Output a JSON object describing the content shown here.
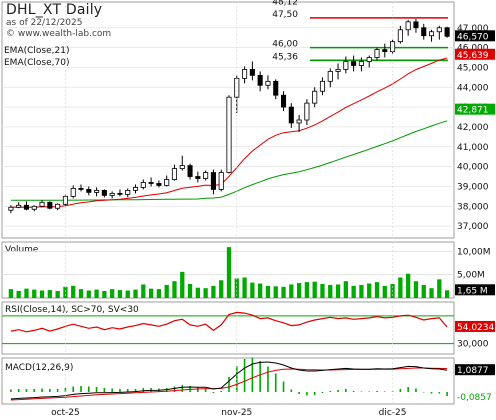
{
  "header": {
    "title": "DHL_XT Daily",
    "date": "as of 22/12/2025",
    "site": "© www.wealth-lab.com",
    "ema21_label": "EMA(Close,21)",
    "ema70_label": "EMA(Close,70)"
  },
  "price_axis": {
    "ticks": [
      "47,000",
      "46,000",
      "45,000",
      "44,000",
      "43,000",
      "42,000",
      "41,000",
      "40,000",
      "39,000",
      "38,000",
      "37,000"
    ],
    "last_close": "46,570",
    "ema21_value": "45,639",
    "ema70_value": "42,871",
    "levels": [
      {
        "label": "48,12",
        "value": 48.12,
        "color": "#000000"
      },
      {
        "label": "47,50",
        "value": 47.5,
        "color": "#dd0000"
      },
      {
        "label": "46,00",
        "value": 46.0,
        "color": "#009900"
      },
      {
        "label": "45,36",
        "value": 45.36,
        "color": "#009900"
      }
    ]
  },
  "volume": {
    "label": "Volume",
    "ticks": [
      "10,00M",
      "5,00M"
    ],
    "last": "1,65 M"
  },
  "rsi": {
    "label": "RSI(Close,14), SC>70, SV<30",
    "ticks": [
      "70,000",
      "30,000"
    ],
    "last": "54,0234"
  },
  "macd": {
    "label": "MACD(12,26,9)",
    "macd_last": "1,0877",
    "hist_last": "-0,0857"
  },
  "x_axis": {
    "labels": [
      "oct-25",
      "nov-25",
      "dic-25"
    ]
  },
  "colors": {
    "up": "#000000",
    "down": "#000000",
    "ema21": "#dd0000",
    "ema70": "#009900",
    "volume": "#00aa00",
    "rsi": "#dd0000",
    "macd": "#000000",
    "macd_signal": "#dd0000",
    "hist": "#00aa00"
  },
  "chart_data": {
    "type": "candlestick",
    "candles": [
      [
        37.8,
        38.05,
        37.65,
        37.95
      ],
      [
        37.95,
        38.2,
        37.9,
        38.05
      ],
      [
        38.05,
        38.25,
        37.8,
        37.85
      ],
      [
        37.85,
        38.05,
        37.75,
        38.0
      ],
      [
        38.0,
        38.3,
        37.95,
        38.2
      ],
      [
        38.2,
        38.25,
        37.85,
        37.9
      ],
      [
        37.9,
        38.15,
        37.8,
        38.1
      ],
      [
        38.1,
        38.6,
        38.05,
        38.5
      ],
      [
        38.5,
        39.05,
        38.4,
        38.9
      ],
      [
        38.9,
        39.1,
        38.75,
        38.85
      ],
      [
        38.85,
        39.0,
        38.55,
        38.7
      ],
      [
        38.7,
        38.95,
        38.5,
        38.8
      ],
      [
        38.8,
        38.85,
        38.45,
        38.55
      ],
      [
        38.55,
        38.75,
        38.4,
        38.65
      ],
      [
        38.65,
        38.85,
        38.5,
        38.6
      ],
      [
        38.6,
        38.9,
        38.45,
        38.8
      ],
      [
        38.8,
        39.1,
        38.65,
        38.95
      ],
      [
        38.95,
        39.35,
        38.85,
        39.2
      ],
      [
        39.2,
        39.45,
        39.0,
        39.15
      ],
      [
        39.15,
        39.3,
        38.95,
        39.05
      ],
      [
        39.05,
        39.55,
        39.0,
        39.35
      ],
      [
        39.35,
        40.1,
        39.3,
        39.9
      ],
      [
        39.9,
        40.55,
        39.8,
        40.05
      ],
      [
        40.05,
        40.15,
        39.35,
        39.5
      ],
      [
        39.5,
        39.75,
        39.2,
        39.4
      ],
      [
        39.4,
        39.8,
        39.3,
        39.7
      ],
      [
        39.7,
        39.85,
        38.6,
        38.85
      ],
      [
        38.85,
        39.85,
        38.75,
        39.7
      ],
      [
        39.7,
        43.6,
        39.65,
        43.5
      ],
      [
        43.5,
        44.6,
        42.7,
        44.45
      ],
      [
        44.45,
        45.05,
        44.2,
        44.9
      ],
      [
        44.9,
        45.3,
        44.35,
        44.6
      ],
      [
        44.6,
        44.8,
        43.8,
        44.1
      ],
      [
        44.1,
        44.6,
        43.9,
        44.3
      ],
      [
        44.3,
        44.4,
        43.4,
        43.6
      ],
      [
        43.6,
        43.8,
        42.8,
        43.0
      ],
      [
        43.0,
        43.2,
        41.95,
        42.2
      ],
      [
        42.2,
        42.6,
        41.75,
        42.35
      ],
      [
        42.35,
        43.4,
        42.1,
        43.2
      ],
      [
        43.2,
        44.0,
        43.0,
        43.8
      ],
      [
        43.8,
        44.5,
        43.6,
        44.3
      ],
      [
        44.3,
        44.95,
        44.0,
        44.8
      ],
      [
        44.8,
        45.2,
        44.4,
        44.9
      ],
      [
        44.9,
        45.55,
        44.7,
        45.3
      ],
      [
        45.3,
        45.6,
        44.8,
        45.1
      ],
      [
        45.1,
        45.5,
        44.8,
        45.3
      ],
      [
        45.3,
        45.6,
        45.0,
        45.5
      ],
      [
        45.5,
        46.0,
        45.35,
        45.9
      ],
      [
        45.9,
        46.2,
        45.5,
        45.8
      ],
      [
        45.8,
        46.4,
        45.7,
        46.3
      ],
      [
        46.3,
        47.1,
        46.2,
        46.9
      ],
      [
        46.9,
        47.4,
        46.6,
        47.3
      ],
      [
        47.3,
        47.45,
        46.75,
        47.0
      ],
      [
        47.0,
        47.2,
        46.4,
        46.6
      ],
      [
        46.6,
        46.9,
        46.3,
        46.8
      ],
      [
        46.8,
        47.1,
        46.4,
        47.0
      ],
      [
        47.0,
        47.05,
        46.5,
        46.57
      ]
    ],
    "volume": [
      1.9,
      1.5,
      2.0,
      1.8,
      1.6,
      1.7,
      1.5,
      2.4,
      2.6,
      1.9,
      1.6,
      1.8,
      1.5,
      1.9,
      1.7,
      1.6,
      1.8,
      2.9,
      2.0,
      1.9,
      2.8,
      3.6,
      5.6,
      3.0,
      2.2,
      2.1,
      2.6,
      3.8,
      10.9,
      4.2,
      4.4,
      3.3,
      3.1,
      2.6,
      2.5,
      2.4,
      2.9,
      3.2,
      3.4,
      3.5,
      3.0,
      2.8,
      2.9,
      3.6,
      2.6,
      2.8,
      3.1,
      3.4,
      2.6,
      3.0,
      4.4,
      5.2,
      3.6,
      2.8,
      2.1,
      4.0,
      1.65
    ],
    "rsi": [
      48,
      50,
      47,
      49,
      52,
      48,
      51,
      55,
      58,
      55,
      52,
      54,
      50,
      53,
      51,
      54,
      56,
      59,
      57,
      55,
      58,
      63,
      65,
      57,
      55,
      58,
      49,
      57,
      72,
      75,
      74,
      71,
      66,
      67,
      63,
      60,
      56,
      57,
      61,
      64,
      66,
      68,
      66,
      67,
      65,
      66,
      67,
      69,
      67,
      68,
      70,
      71,
      68,
      64,
      66,
      67,
      54
    ],
    "macd": [
      -0.35,
      -0.32,
      -0.3,
      -0.28,
      -0.25,
      -0.24,
      -0.22,
      -0.18,
      -0.12,
      -0.08,
      -0.06,
      -0.04,
      -0.04,
      -0.03,
      -0.02,
      0.0,
      0.02,
      0.06,
      0.08,
      0.09,
      0.12,
      0.18,
      0.24,
      0.25,
      0.24,
      0.24,
      0.15,
      0.2,
      0.55,
      0.9,
      1.2,
      1.4,
      1.48,
      1.5,
      1.45,
      1.35,
      1.2,
      1.1,
      1.05,
      1.05,
      1.08,
      1.12,
      1.15,
      1.18,
      1.15,
      1.14,
      1.14,
      1.16,
      1.15,
      1.16,
      1.22,
      1.28,
      1.27,
      1.2,
      1.16,
      1.15,
      1.09
    ],
    "macd_signal": [
      -0.4,
      -0.38,
      -0.36,
      -0.34,
      -0.32,
      -0.3,
      -0.28,
      -0.26,
      -0.23,
      -0.2,
      -0.17,
      -0.14,
      -0.12,
      -0.1,
      -0.08,
      -0.06,
      -0.04,
      -0.02,
      0.0,
      0.02,
      0.04,
      0.07,
      0.1,
      0.13,
      0.15,
      0.17,
      0.17,
      0.18,
      0.25,
      0.38,
      0.54,
      0.71,
      0.86,
      0.99,
      1.08,
      1.14,
      1.15,
      1.14,
      1.12,
      1.11,
      1.1,
      1.1,
      1.11,
      1.12,
      1.13,
      1.13,
      1.13,
      1.14,
      1.14,
      1.14,
      1.16,
      1.18,
      1.2,
      1.2,
      1.19,
      1.18,
      1.17
    ],
    "x_labels": [
      "oct-25",
      "nov-25",
      "dic-25"
    ],
    "ylim": [
      36.4,
      48.3
    ]
  }
}
